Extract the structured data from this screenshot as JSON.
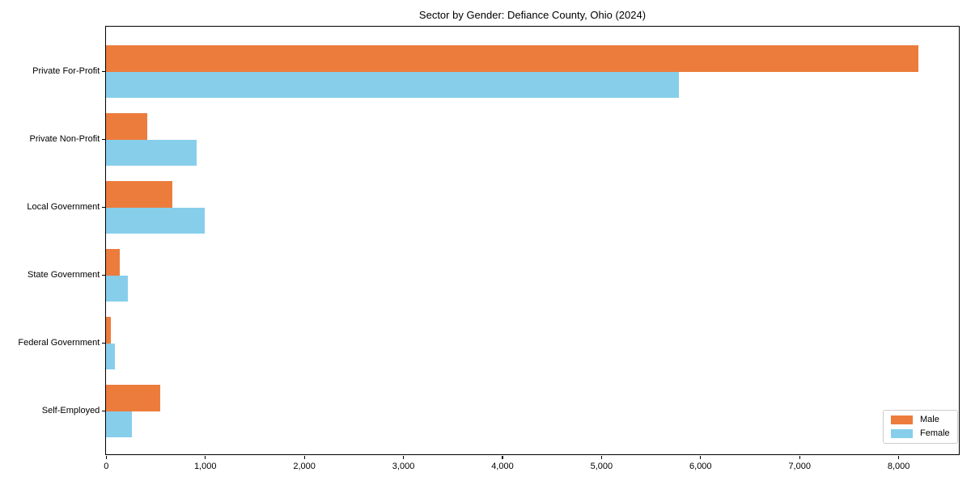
{
  "chart_data": {
    "type": "bar",
    "orientation": "horizontal",
    "title": "Sector by Gender: Defiance County, Ohio (2024)",
    "categories": [
      "Private For-Profit",
      "Private Non-Profit",
      "Local Government",
      "State Government",
      "Federal Government",
      "Self-Employed"
    ],
    "series": [
      {
        "name": "Male",
        "color": "#EC7C3C",
        "values": [
          8200,
          420,
          670,
          140,
          45,
          550
        ]
      },
      {
        "name": "Female",
        "color": "#87CEEB",
        "values": [
          5780,
          915,
          1000,
          220,
          90,
          260
        ]
      }
    ],
    "xlim": [
      0,
      8610
    ],
    "x_ticks": [
      0,
      1000,
      2000,
      3000,
      4000,
      5000,
      6000,
      7000,
      8000
    ],
    "x_tick_labels": [
      "0",
      "1,000",
      "2,000",
      "3,000",
      "4,000",
      "5,000",
      "6,000",
      "7,000",
      "8,000"
    ],
    "ylabel": "",
    "xlabel": "",
    "grid": false,
    "background": "#FFFFFF",
    "axis_color": "#000000",
    "legend": {
      "position": "lower right"
    }
  }
}
